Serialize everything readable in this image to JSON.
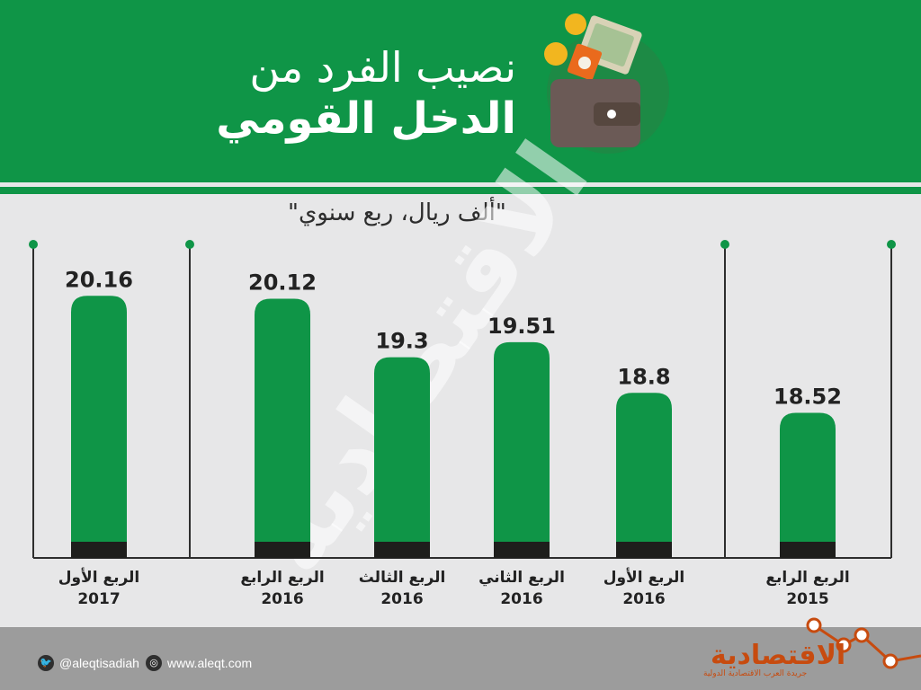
{
  "header": {
    "title_line1": "نصيب الفرد من",
    "title_line2": "الدخل القومي"
  },
  "unit_label": "\"ألف ريال، ربع سنوي\"",
  "watermark": "الاقتصادية",
  "colors": {
    "green": "#0f9547",
    "bar_base": "#1e1e1c",
    "background": "#e7e7e8",
    "footer": "#9c9c9c",
    "brand": "#c74b0f"
  },
  "chart_data": {
    "type": "bar",
    "direction": "right-to-left",
    "categories": [
      {
        "quarter": "الربع الرابع",
        "year": "2015"
      },
      {
        "quarter": "الربع الأول",
        "year": "2016"
      },
      {
        "quarter": "الربع الثاني",
        "year": "2016"
      },
      {
        "quarter": "الربع الثالث",
        "year": "2016"
      },
      {
        "quarter": "الربع الرابع",
        "year": "2016"
      },
      {
        "quarter": "الربع الأول",
        "year": "2017"
      }
    ],
    "values": [
      18.52,
      18.8,
      19.51,
      19.3,
      20.12,
      20.16
    ],
    "value_labels": [
      "18.52",
      "18.8",
      "19.51",
      "19.3",
      "20.12",
      "20.16"
    ],
    "year_groups": [
      "2015",
      "2016",
      "2017"
    ],
    "grid": false
  },
  "footer": {
    "twitter": "@aleqtisadiah",
    "website": "www.aleqt.com",
    "brand_name": "الاقتصادية",
    "brand_tagline": "جريدة العرب الاقتصادية الدولية",
    "twitter_icon": "twitter-icon",
    "web_icon": "web-icon"
  }
}
